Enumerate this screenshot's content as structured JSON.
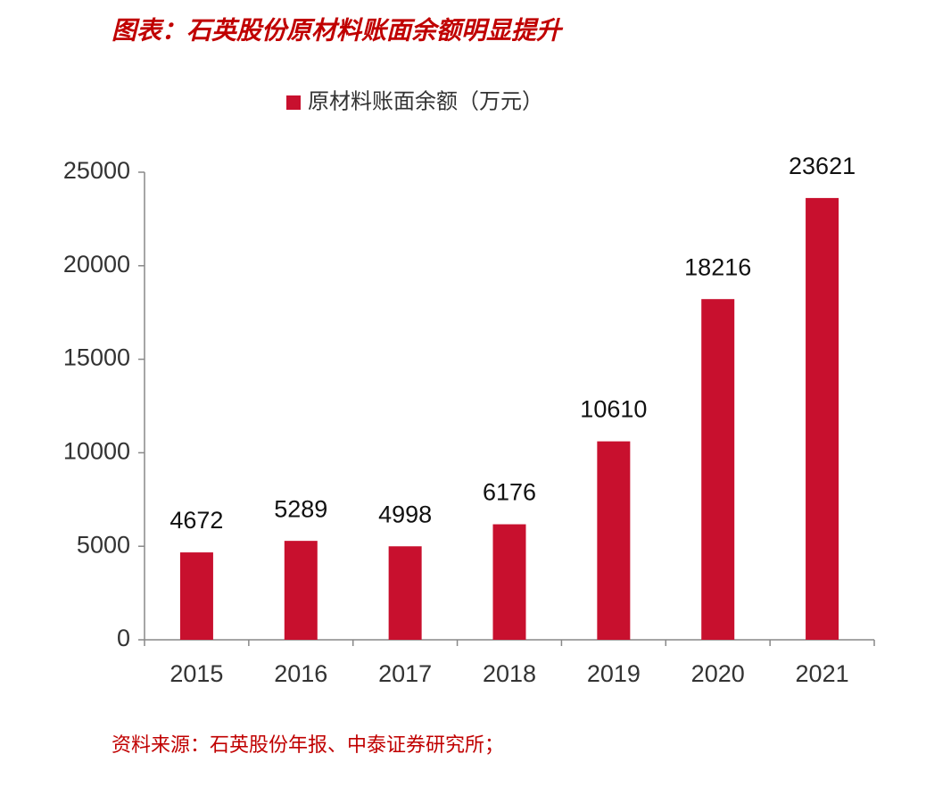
{
  "chart_data": {
    "type": "bar",
    "title": "图表：石英股份原材料账面余额明显提升",
    "categories": [
      "2015",
      "2016",
      "2017",
      "2018",
      "2019",
      "2020",
      "2021"
    ],
    "series": [
      {
        "name": "原材料账面余额（万元）",
        "color": "#c8102e",
        "values": [
          4672,
          5289,
          4998,
          6176,
          10610,
          18216,
          23621
        ]
      }
    ],
    "ylim": [
      0,
      25000
    ],
    "yticks": [
      0,
      5000,
      10000,
      15000,
      20000,
      25000
    ],
    "grid": false,
    "legend": "top",
    "source": "资料来源：石英股份年报、中泰证券研究所；"
  }
}
